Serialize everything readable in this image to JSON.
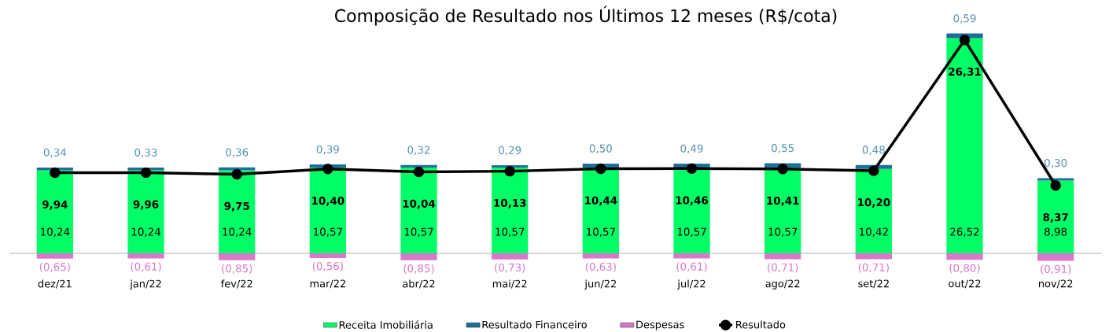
{
  "chart_data": {
    "type": "bar",
    "title": "Composição de Resultado nos Últimos 12 meses (R$/cota)",
    "categories": [
      "dez/21",
      "jan/22",
      "fev/22",
      "mar/22",
      "abr/22",
      "mai/22",
      "jun/22",
      "jul/22",
      "ago/22",
      "set/22",
      "out/22",
      "nov/22"
    ],
    "stacked": true,
    "tick_labels": "x",
    "legend": "bottom",
    "marker": "circle",
    "series": [
      {
        "name": "Receita Imobiliária",
        "color": "#00ff66",
        "values": [
          10.24,
          10.24,
          10.24,
          10.57,
          10.57,
          10.57,
          10.57,
          10.57,
          10.57,
          10.42,
          26.52,
          8.98
        ],
        "value_labels": [
          "10,24",
          "10,24",
          "10,24",
          "10,57",
          "10,57",
          "10,57",
          "10,57",
          "10,57",
          "10,57",
          "10,42",
          "26,52",
          "8,98"
        ]
      },
      {
        "name": "Resultado Financeiro",
        "color": "#1f6e99",
        "values": [
          0.34,
          0.33,
          0.36,
          0.39,
          0.32,
          0.29,
          0.5,
          0.49,
          0.55,
          0.48,
          0.59,
          0.3
        ],
        "value_labels": [
          "0,34",
          "0,33",
          "0,36",
          "0,39",
          "0,32",
          "0,29",
          "0,50",
          "0,49",
          "0,55",
          "0,48",
          "0,59",
          "0,30"
        ]
      },
      {
        "name": "Despesas",
        "color": "#d878c8",
        "values": [
          -0.65,
          -0.61,
          -0.85,
          -0.56,
          -0.85,
          -0.73,
          -0.63,
          -0.61,
          -0.71,
          -0.71,
          -0.8,
          -0.91
        ],
        "value_labels": [
          "(0,65)",
          "(0,61)",
          "(0,85)",
          "(0,56)",
          "(0,85)",
          "(0,73)",
          "(0,63)",
          "(0,61)",
          "(0,71)",
          "(0,71)",
          "(0,80)",
          "(0,91)"
        ]
      },
      {
        "name": "Resultado",
        "type": "line",
        "color": "#000000",
        "values": [
          9.94,
          9.96,
          9.75,
          10.4,
          10.04,
          10.13,
          10.44,
          10.46,
          10.41,
          10.2,
          26.31,
          8.37
        ],
        "value_labels": [
          "9,94",
          "9,96",
          "9,75",
          "10,40",
          "10,04",
          "10,13",
          "10,44",
          "10,46",
          "10,41",
          "10,20",
          "26,31",
          "8,37"
        ]
      }
    ]
  }
}
